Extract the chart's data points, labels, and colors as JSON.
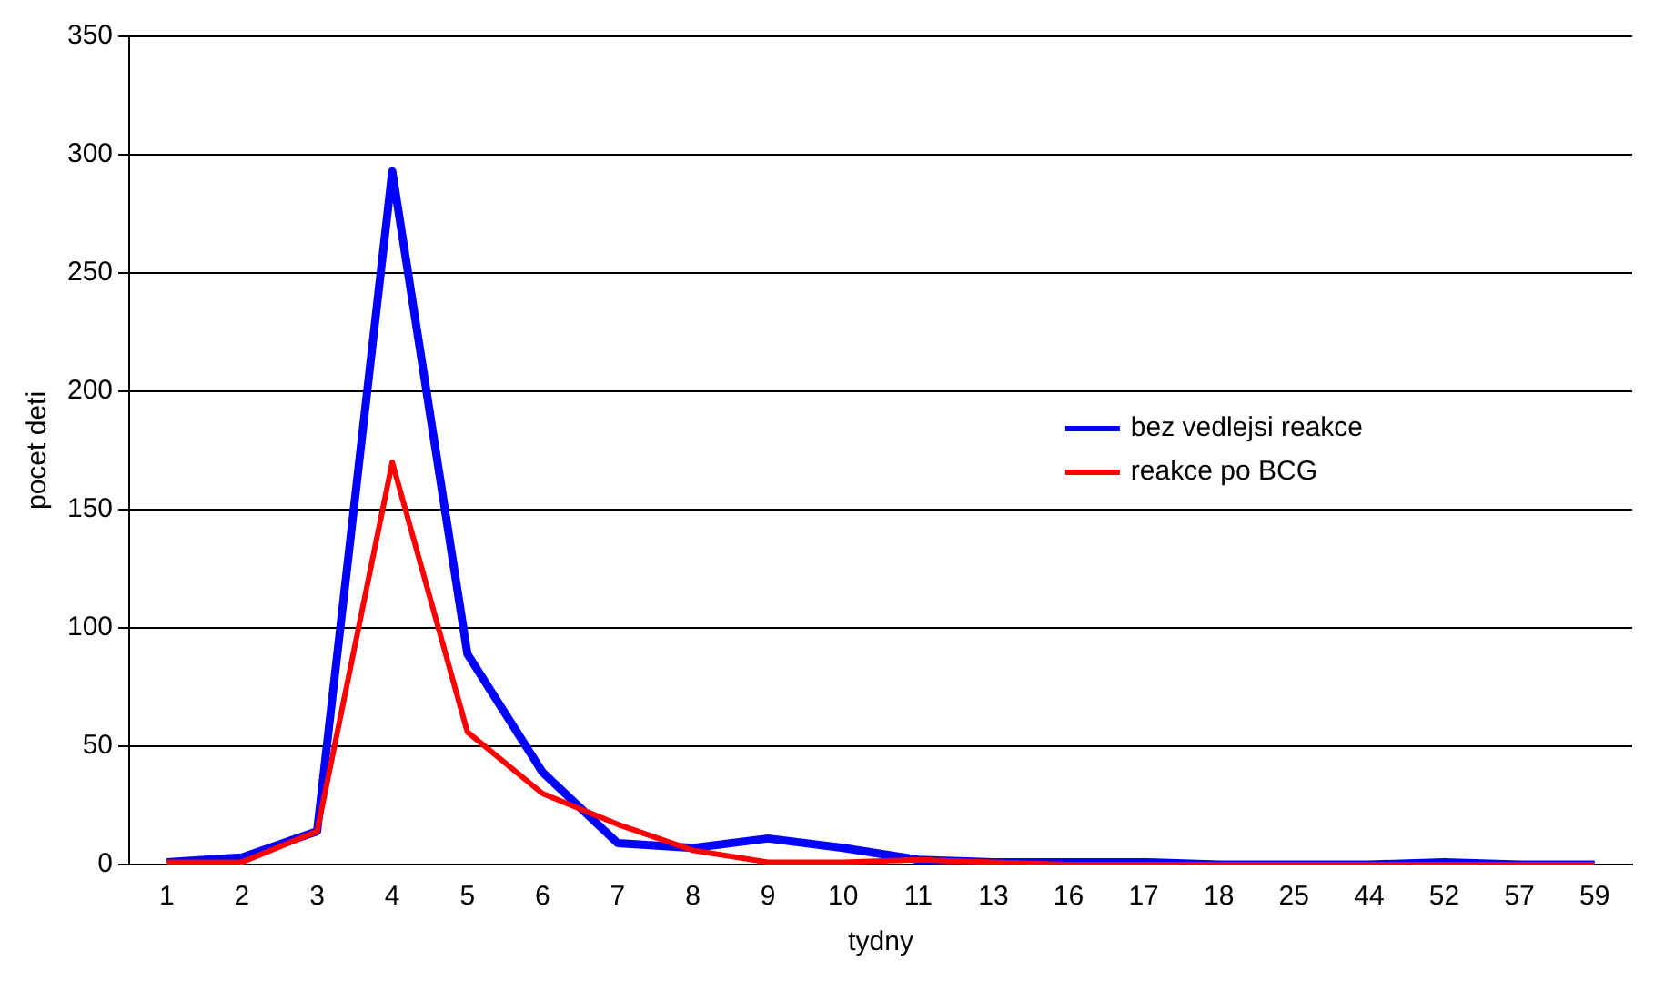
{
  "chart_data": {
    "type": "line",
    "xlabel": "tydny",
    "ylabel": "pocet deti",
    "categories": [
      "1",
      "2",
      "3",
      "4",
      "5",
      "6",
      "7",
      "8",
      "9",
      "10",
      "11",
      "13",
      "16",
      "17",
      "18",
      "25",
      "44",
      "52",
      "57",
      "59"
    ],
    "series": [
      {
        "name": "bez vedlejsi reakce",
        "color": "#0000ff",
        "values": [
          1,
          3,
          14,
          293,
          89,
          39,
          9,
          7,
          11,
          7,
          2,
          1,
          1,
          1,
          0,
          0,
          0,
          1,
          0,
          0
        ]
      },
      {
        "name": "reakce po BCG",
        "color": "#ff0000",
        "values": [
          1,
          1,
          14,
          170,
          56,
          30,
          17,
          6,
          1,
          1,
          2,
          1,
          0,
          0,
          0,
          0,
          0,
          0,
          0,
          0
        ]
      }
    ],
    "ylim": [
      0,
      350
    ],
    "yticks": [
      0,
      50,
      100,
      150,
      200,
      250,
      300,
      350
    ],
    "grid": "y",
    "legend": "right",
    "marker": "none",
    "line_style": "solid"
  }
}
